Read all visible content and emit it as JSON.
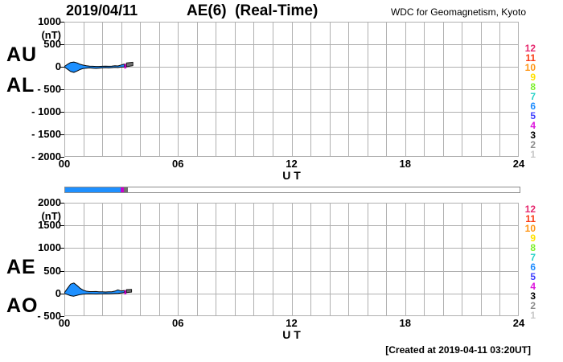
{
  "header": {
    "date": "2019/04/11",
    "title": "AE(6)  (Real-Time)",
    "credit": "WDC for Geomagnetism, Kyoto"
  },
  "footer": {
    "created": "[Created at 2019-04-11 03:20UT]"
  },
  "station_legend": {
    "description": "number of contributing stations color scale",
    "values": [
      {
        "label": "12",
        "color": "#e6286e"
      },
      {
        "label": "11",
        "color": "#fa3c14"
      },
      {
        "label": "10",
        "color": "#ff9614"
      },
      {
        "label": "9",
        "color": "#ffe100"
      },
      {
        "label": "8",
        "color": "#7df02d"
      },
      {
        "label": "7",
        "color": "#28d2c8"
      },
      {
        "label": "6",
        "color": "#1e8cff"
      },
      {
        "label": "5",
        "color": "#4141ff"
      },
      {
        "label": "4",
        "color": "#dc14dc"
      },
      {
        "label": "3",
        "color": "#000000"
      },
      {
        "label": "2",
        "color": "#8c8c8c"
      },
      {
        "label": "1",
        "color": "#c8c8c8"
      }
    ]
  },
  "progress_bar": {
    "total_hours": 24,
    "segments": [
      {
        "color": "#1e90ff",
        "from_hour": 0,
        "to_hour": 2.95,
        "striped": true
      },
      {
        "color": "#cc00cc",
        "from_hour": 2.95,
        "to_hour": 3.12,
        "striped": false
      },
      {
        "color": "#707070",
        "from_hour": 3.12,
        "to_hour": 3.33,
        "striped": false
      }
    ]
  },
  "chart_data": [
    {
      "type": "area",
      "name": "AU-AL",
      "left_labels": [
        "AU",
        "AL"
      ],
      "unit": "(nT)",
      "xlabel": "U T",
      "ylim": [
        -2000,
        1000
      ],
      "y_tick_step": 500,
      "y_ticks": [
        "1000",
        "500",
        "0",
        "- 500",
        "- 1000",
        "- 1500",
        "- 2000"
      ],
      "xlim": [
        0,
        24
      ],
      "x_grid_step": 1,
      "x_ticks": [
        {
          "label": "00",
          "hour": 0
        },
        {
          "label": "06",
          "hour": 6
        },
        {
          "label": "12",
          "hour": 12
        },
        {
          "label": "18",
          "hour": 18
        },
        {
          "label": "24",
          "hour": 24
        }
      ],
      "hours": [
        0,
        0.17,
        0.33,
        0.5,
        0.67,
        0.83,
        1,
        1.17,
        1.33,
        1.5,
        1.67,
        1.83,
        2,
        2.17,
        2.33,
        2.5,
        2.67,
        2.83,
        3,
        3.17
      ],
      "series": [
        {
          "name": "AU",
          "values": [
            5,
            55,
            95,
            105,
            85,
            55,
            35,
            22,
            15,
            10,
            8,
            8,
            10,
            12,
            10,
            14,
            22,
            18,
            40,
            60
          ]
        },
        {
          "name": "AL",
          "values": [
            -5,
            -55,
            -105,
            -125,
            -95,
            -60,
            -38,
            -30,
            -25,
            -30,
            -35,
            -30,
            -25,
            -20,
            -25,
            -20,
            -15,
            -18,
            -8,
            -5
          ]
        }
      ],
      "fill_color": "#1e90ff",
      "outline_color": "#000000",
      "grid_color": "#b0b0b0",
      "tail_segments": [
        {
          "color": "#cc00cc",
          "stroke": "none",
          "x": [
            3.17,
            3.28
          ],
          "upper": [
            62,
            68
          ],
          "lower": [
            -45,
            -30
          ]
        },
        {
          "color": "#6e6e6e",
          "stroke": "#1a1a1a",
          "x": [
            3.28,
            3.62
          ],
          "upper": [
            85,
            100
          ],
          "lower": [
            0,
            25
          ]
        }
      ]
    },
    {
      "type": "area",
      "name": "AE-AO",
      "left_labels": [
        "AE",
        "AO"
      ],
      "unit": "(nT)",
      "xlabel": "U T",
      "ylim": [
        -500,
        2000
      ],
      "y_tick_step": 500,
      "y_ticks": [
        "2000",
        "1500",
        "1000",
        "500",
        "0",
        "- 500"
      ],
      "xlim": [
        0,
        24
      ],
      "x_grid_step": 1,
      "x_ticks": [
        {
          "label": "00",
          "hour": 0
        },
        {
          "label": "06",
          "hour": 6
        },
        {
          "label": "12",
          "hour": 12
        },
        {
          "label": "18",
          "hour": 18
        },
        {
          "label": "24",
          "hour": 24
        }
      ],
      "hours": [
        0,
        0.17,
        0.33,
        0.5,
        0.67,
        0.83,
        1,
        1.17,
        1.33,
        1.5,
        1.67,
        1.83,
        2,
        2.17,
        2.33,
        2.5,
        2.67,
        2.83,
        3,
        3.17
      ],
      "series": [
        {
          "name": "AE",
          "values": [
            15,
            115,
            205,
            230,
            175,
            115,
            72,
            50,
            40,
            40,
            43,
            38,
            35,
            32,
            35,
            38,
            52,
            80,
            55,
            65
          ]
        },
        {
          "name": "AO",
          "values": [
            0,
            -25,
            -50,
            -60,
            -40,
            -25,
            -15,
            -10,
            -8,
            -10,
            -13,
            -11,
            -8,
            -5,
            -8,
            -5,
            -2,
            0,
            8,
            18
          ]
        }
      ],
      "fill_color": "#1e90ff",
      "outline_color": "#000000",
      "grid_color": "#b0b0b0",
      "tail_segments": [
        {
          "color": "#cc00cc",
          "stroke": "none",
          "x": [
            3.17,
            3.28
          ],
          "upper": [
            70,
            75
          ],
          "lower": [
            -25,
            -15
          ]
        },
        {
          "color": "#6e6e6e",
          "stroke": "#1a1a1a",
          "x": [
            3.28,
            3.55
          ],
          "upper": [
            85,
            90
          ],
          "lower": [
            20,
            30
          ]
        }
      ]
    }
  ]
}
